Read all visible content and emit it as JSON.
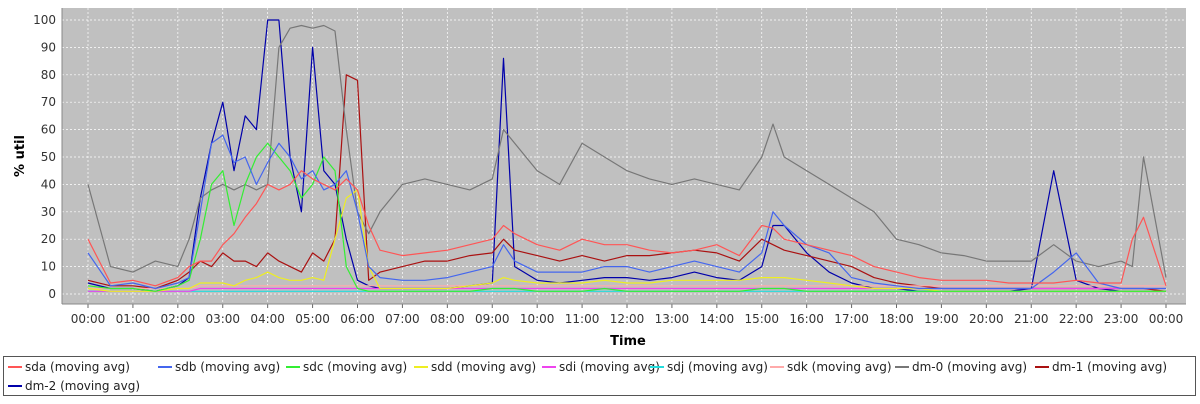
{
  "chart_data": {
    "type": "line",
    "title": "",
    "xlabel": "Time",
    "ylabel": "% util",
    "ylim": [
      0,
      102
    ],
    "xlim": [
      "00:00",
      "24:00"
    ],
    "grid": true,
    "legend_position": "bottom",
    "x_ticks": [
      "00:00",
      "01:00",
      "02:00",
      "03:00",
      "04:00",
      "05:00",
      "06:00",
      "07:00",
      "08:00",
      "09:00",
      "10:00",
      "11:00",
      "12:00",
      "13:00",
      "14:00",
      "15:00",
      "16:00",
      "17:00",
      "18:00",
      "19:00",
      "20:00",
      "21:00",
      "22:00",
      "23:00",
      "00:00"
    ],
    "y_ticks": [
      0,
      10,
      20,
      30,
      40,
      50,
      60,
      70,
      80,
      90,
      100
    ],
    "x_hours": [
      0,
      0.5,
      1,
      1.5,
      2,
      2.25,
      2.5,
      2.75,
      3,
      3.25,
      3.5,
      3.75,
      4,
      4.25,
      4.5,
      4.75,
      5,
      5.25,
      5.5,
      5.75,
      6,
      6.25,
      6.5,
      7,
      7.5,
      8,
      8.5,
      9,
      9.25,
      9.5,
      10,
      10.5,
      11,
      11.5,
      12,
      12.5,
      13,
      13.5,
      14,
      14.5,
      15,
      15.25,
      15.5,
      16,
      16.5,
      17,
      17.5,
      18,
      18.5,
      19,
      19.5,
      20,
      20.5,
      21,
      21.5,
      22,
      22.5,
      23,
      23.25,
      23.5,
      24
    ],
    "series": [
      {
        "name": "sda (moving avg)",
        "color": "#ff5555",
        "values": [
          20,
          4,
          5,
          3,
          6,
          10,
          12,
          12,
          18,
          22,
          28,
          33,
          40,
          38,
          40,
          45,
          42,
          40,
          38,
          42,
          38,
          25,
          16,
          14,
          15,
          16,
          18,
          20,
          25,
          22,
          18,
          16,
          20,
          18,
          18,
          16,
          15,
          16,
          18,
          14,
          25,
          24,
          20,
          18,
          16,
          14,
          10,
          8,
          6,
          5,
          5,
          5,
          4,
          4,
          4,
          5,
          4,
          4,
          20,
          28,
          3
        ]
      },
      {
        "name": "sdb (moving avg)",
        "color": "#4466ee",
        "values": [
          15,
          3,
          4,
          2,
          4,
          6,
          30,
          55,
          58,
          48,
          50,
          40,
          48,
          55,
          50,
          42,
          45,
          38,
          40,
          45,
          30,
          10,
          6,
          5,
          5,
          6,
          8,
          10,
          18,
          12,
          8,
          8,
          8,
          10,
          10,
          8,
          10,
          12,
          10,
          8,
          15,
          30,
          25,
          18,
          15,
          6,
          4,
          3,
          2,
          2,
          2,
          2,
          2,
          2,
          8,
          15,
          4,
          2,
          2,
          2,
          2
        ]
      },
      {
        "name": "sdc (moving avg)",
        "color": "#33ee33",
        "values": [
          3,
          2,
          2,
          1,
          3,
          5,
          20,
          40,
          45,
          25,
          40,
          50,
          55,
          50,
          45,
          35,
          40,
          50,
          45,
          10,
          2,
          1,
          1,
          1,
          1,
          1,
          1,
          2,
          2,
          2,
          1,
          1,
          1,
          2,
          1,
          1,
          1,
          1,
          1,
          1,
          2,
          2,
          2,
          1,
          1,
          1,
          1,
          1,
          1,
          1,
          1,
          1,
          1,
          1,
          1,
          1,
          1,
          1,
          1,
          1,
          1
        ]
      },
      {
        "name": "sdd (moving avg)",
        "color": "#eeee22",
        "values": [
          2,
          1,
          1,
          1,
          2,
          2,
          4,
          4,
          4,
          3,
          5,
          6,
          8,
          6,
          5,
          5,
          6,
          5,
          20,
          35,
          38,
          10,
          2,
          2,
          2,
          2,
          3,
          4,
          6,
          5,
          4,
          4,
          4,
          5,
          4,
          4,
          5,
          5,
          5,
          5,
          6,
          6,
          6,
          5,
          4,
          3,
          2,
          2,
          2,
          1,
          1,
          1,
          1,
          1,
          1,
          1,
          1,
          1,
          1,
          1,
          1
        ]
      },
      {
        "name": "sdi (moving avg)",
        "color": "#ee44ee",
        "values": [
          1,
          1,
          1,
          1,
          1,
          1,
          2,
          2,
          2,
          2,
          2,
          2,
          2,
          2,
          2,
          2,
          2,
          2,
          2,
          2,
          2,
          2,
          2,
          2,
          2,
          2,
          2,
          2,
          2,
          2,
          2,
          2,
          2,
          2,
          2,
          2,
          2,
          2,
          2,
          2,
          2,
          2,
          2,
          2,
          2,
          2,
          2,
          2,
          2,
          2,
          2,
          2,
          2,
          2,
          2,
          2,
          2,
          2,
          2,
          2,
          2
        ]
      },
      {
        "name": "sdj (moving avg)",
        "color": "#22dddd",
        "values": [
          1,
          1,
          1,
          1,
          1,
          1,
          1,
          1,
          1,
          1,
          1,
          1,
          1,
          1,
          1,
          1,
          1,
          1,
          1,
          1,
          1,
          1,
          1,
          1,
          1,
          1,
          1,
          1,
          1,
          1,
          1,
          1,
          1,
          1,
          1,
          1,
          1,
          1,
          1,
          1,
          1,
          1,
          1,
          1,
          1,
          1,
          1,
          1,
          1,
          1,
          1,
          1,
          1,
          1,
          1,
          1,
          1,
          1,
          1,
          1,
          1
        ]
      },
      {
        "name": "sdk (moving avg)",
        "color": "#ffaaaa",
        "values": [
          2,
          2,
          2,
          2,
          2,
          2,
          3,
          3,
          3,
          3,
          3,
          3,
          3,
          3,
          3,
          3,
          3,
          3,
          3,
          3,
          3,
          3,
          3,
          3,
          3,
          3,
          3,
          3,
          3,
          3,
          3,
          3,
          3,
          3,
          3,
          3,
          3,
          3,
          3,
          3,
          3,
          3,
          3,
          3,
          3,
          3,
          3,
          3,
          3,
          3,
          3,
          3,
          3,
          3,
          3,
          3,
          3,
          3,
          3,
          3,
          3
        ]
      },
      {
        "name": "dm-0 (moving avg)",
        "color": "#777777",
        "values": [
          40,
          10,
          8,
          12,
          10,
          20,
          35,
          38,
          40,
          38,
          40,
          38,
          40,
          90,
          97,
          98,
          97,
          98,
          96,
          60,
          30,
          22,
          30,
          40,
          42,
          40,
          38,
          42,
          60,
          55,
          45,
          40,
          55,
          50,
          45,
          42,
          40,
          42,
          40,
          38,
          50,
          62,
          50,
          45,
          40,
          35,
          30,
          20,
          18,
          15,
          14,
          12,
          12,
          12,
          18,
          12,
          10,
          12,
          10,
          50,
          6
        ]
      },
      {
        "name": "dm-1 (moving avg)",
        "color": "#aa1111",
        "values": [
          5,
          3,
          3,
          2,
          5,
          8,
          12,
          10,
          15,
          12,
          12,
          10,
          15,
          12,
          10,
          8,
          15,
          12,
          20,
          80,
          78,
          5,
          8,
          10,
          12,
          12,
          14,
          15,
          20,
          16,
          14,
          12,
          14,
          12,
          14,
          14,
          15,
          16,
          15,
          12,
          20,
          18,
          16,
          14,
          12,
          10,
          6,
          4,
          3,
          2,
          2,
          2,
          2,
          2,
          2,
          2,
          2,
          2,
          2,
          2,
          1
        ]
      },
      {
        "name": "dm-2 (moving avg)",
        "color": "#0000aa",
        "values": [
          4,
          2,
          2,
          1,
          3,
          6,
          35,
          55,
          70,
          45,
          65,
          60,
          100,
          100,
          50,
          30,
          90,
          45,
          40,
          20,
          5,
          3,
          2,
          2,
          2,
          2,
          3,
          4,
          86,
          10,
          5,
          4,
          5,
          6,
          6,
          5,
          6,
          8,
          6,
          5,
          10,
          25,
          25,
          15,
          8,
          4,
          2,
          2,
          1,
          1,
          1,
          1,
          1,
          2,
          45,
          5,
          2,
          1,
          1,
          1,
          1
        ]
      }
    ]
  }
}
